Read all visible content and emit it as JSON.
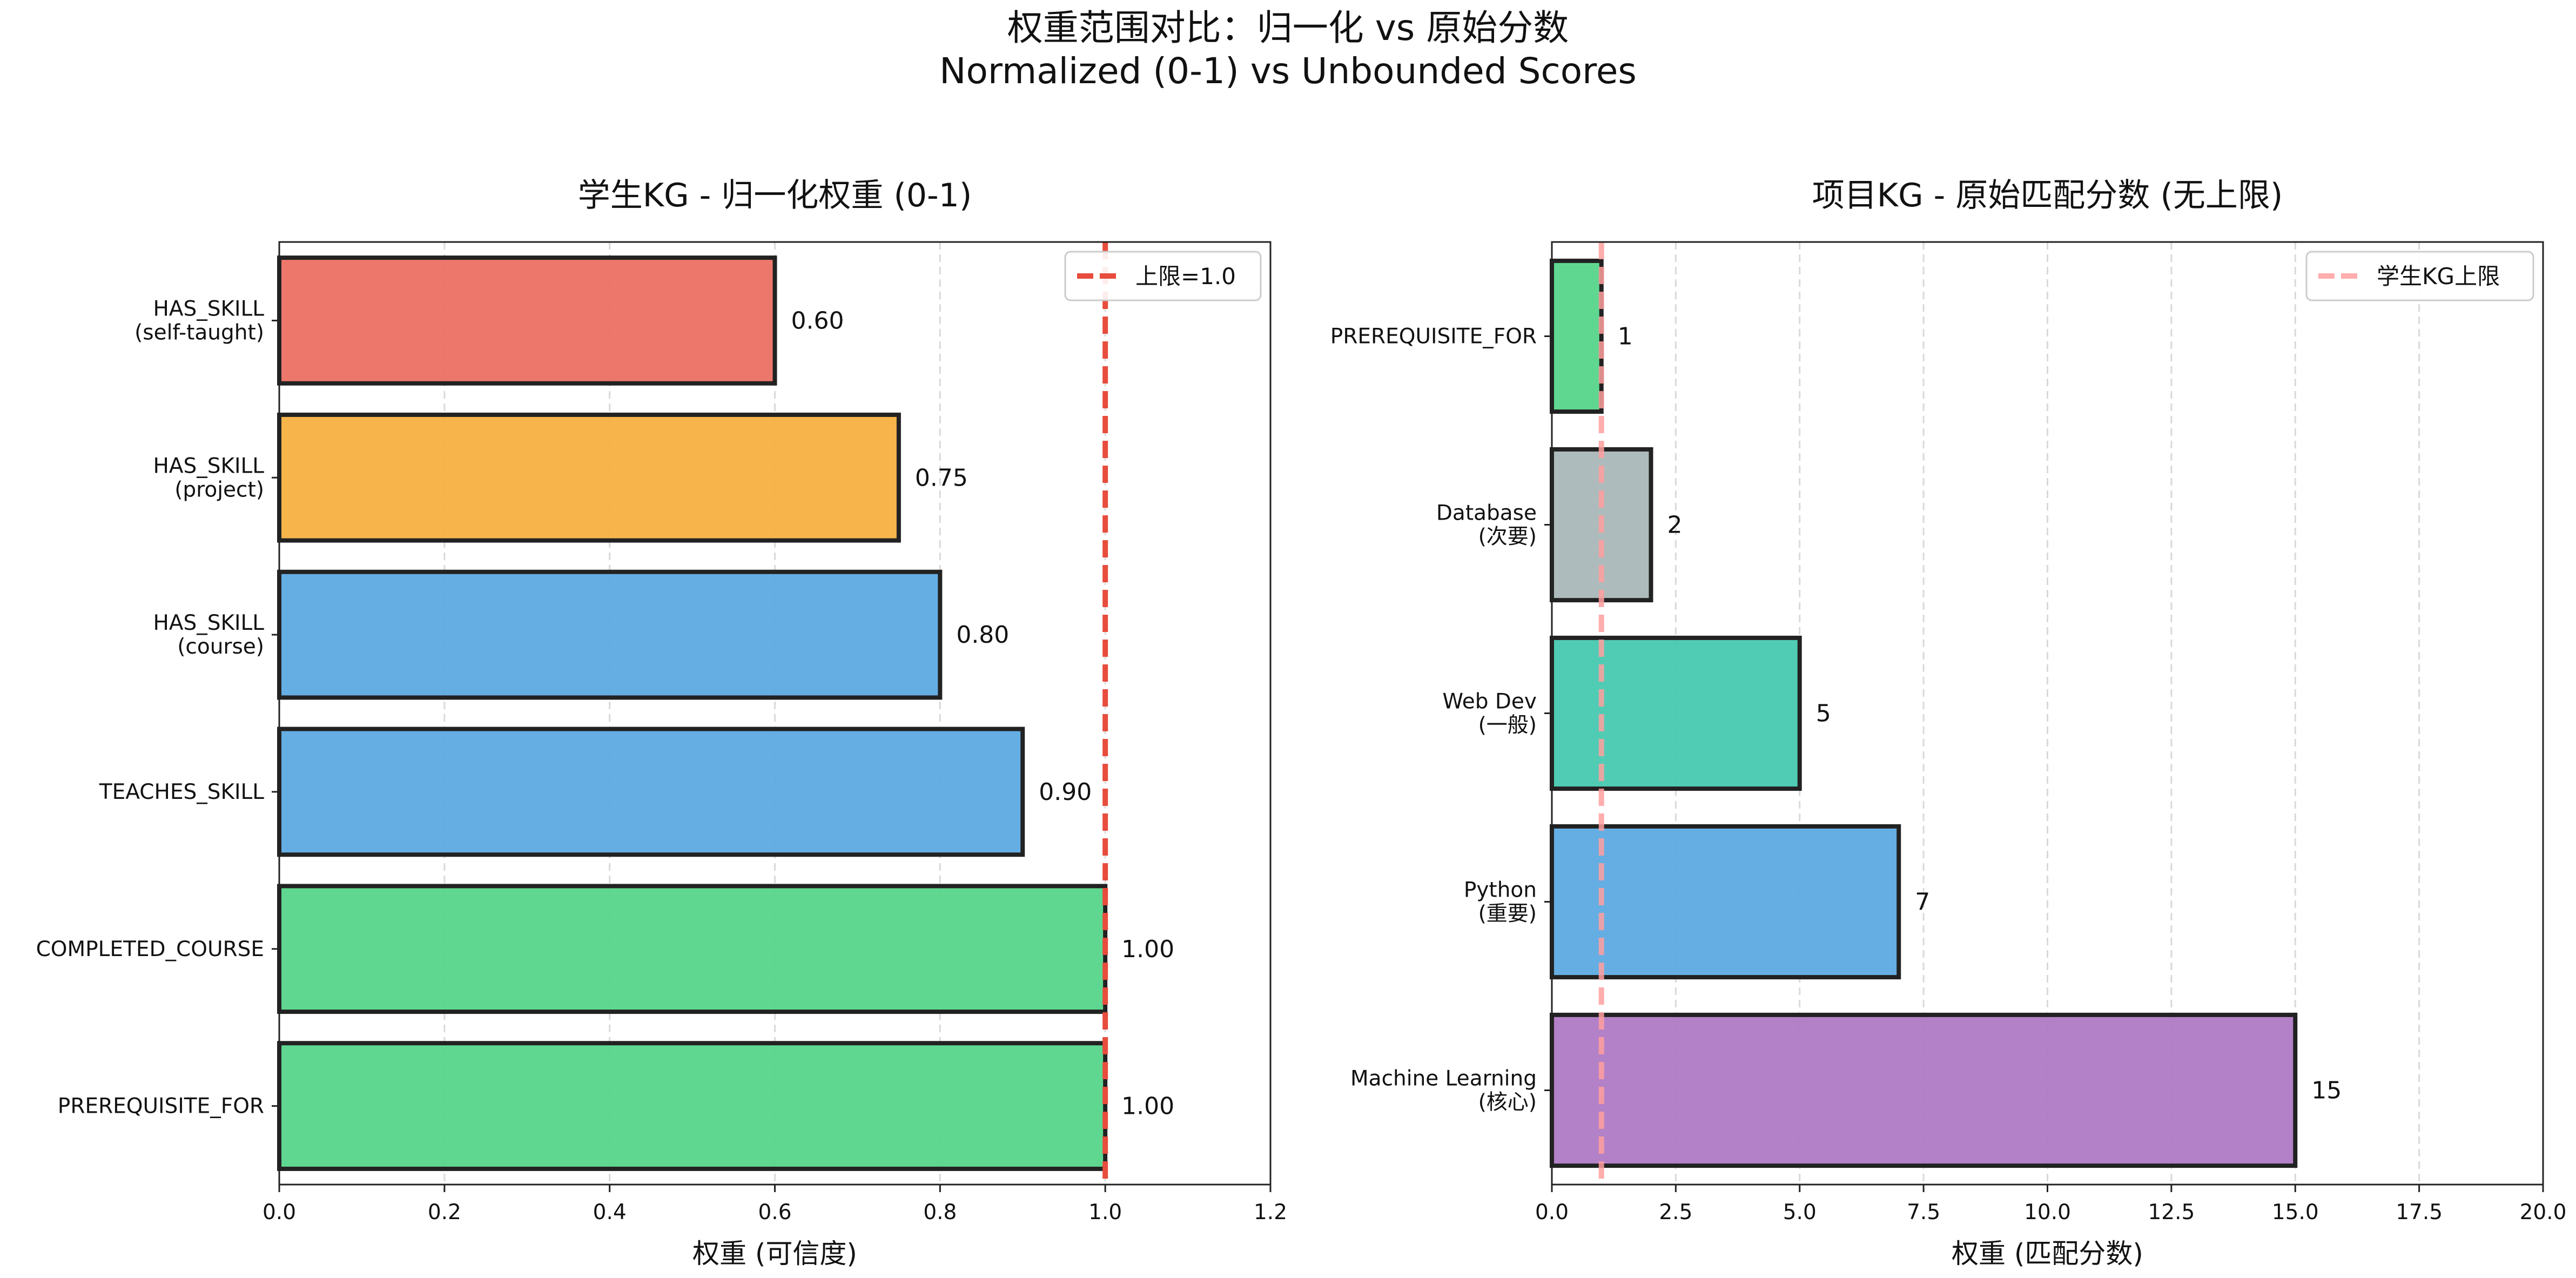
{
  "figure": {
    "title_line1": "权重范围对比：归一化 vs 原始分数",
    "title_line2": "Normalized (0-1) vs Unbounded Scores"
  },
  "chart_data": [
    {
      "type": "bar",
      "orientation": "horizontal",
      "title": "学生KG - 归一化权重 (0-1)",
      "xlabel": "权重 (可信度)",
      "ylabel": "",
      "xlim": [
        0,
        1.2
      ],
      "xticks": [
        0.0,
        0.2,
        0.4,
        0.6,
        0.8,
        1.0,
        1.2
      ],
      "tick_decimals": 1,
      "value_decimals": 2,
      "grid": "x-dashed",
      "categories": [
        [
          "PREREQUISITE_FOR"
        ],
        [
          "COMPLETED_COURSE"
        ],
        [
          "TEACHES_SKILL"
        ],
        [
          "HAS_SKILL",
          "(course)"
        ],
        [
          "HAS_SKILL",
          "(project)"
        ],
        [
          "HAS_SKILL",
          "(self-taught)"
        ]
      ],
      "values": [
        1.0,
        1.0,
        0.9,
        0.8,
        0.75,
        0.6
      ],
      "colors": [
        "#57d58a",
        "#57d58a",
        "#5daae2",
        "#5daae2",
        "#f5b041",
        "#ec7063"
      ],
      "reference_line": {
        "x": 1.0,
        "label": "上限=1.0",
        "color": "#e74c3c",
        "alpha": 1.0
      },
      "legend": "top-right"
    },
    {
      "type": "bar",
      "orientation": "horizontal",
      "title": "项目KG - 原始匹配分数 (无上限)",
      "xlabel": "权重 (匹配分数)",
      "ylabel": "",
      "xlim": [
        0,
        20
      ],
      "xticks": [
        0.0,
        2.5,
        5.0,
        7.5,
        10.0,
        12.5,
        15.0,
        17.5,
        20.0
      ],
      "tick_decimals": 1,
      "value_decimals": 0,
      "grid": "x-dashed",
      "categories": [
        [
          "Machine Learning",
          "(核心)"
        ],
        [
          "Python",
          "(重要)"
        ],
        [
          "Web Dev",
          "(一般)"
        ],
        [
          "Database",
          "(次要)"
        ],
        [
          "PREREQUISITE_FOR"
        ]
      ],
      "values": [
        15,
        7,
        5,
        2,
        1
      ],
      "colors": [
        "#af7ac5",
        "#5daae2",
        "#48c9b0",
        "#aab7b8",
        "#57d58a"
      ],
      "reference_line": {
        "x": 1,
        "label": "学生KG上限",
        "color": "#ff9f9f",
        "alpha": 0.85
      },
      "legend": "top-right"
    }
  ]
}
